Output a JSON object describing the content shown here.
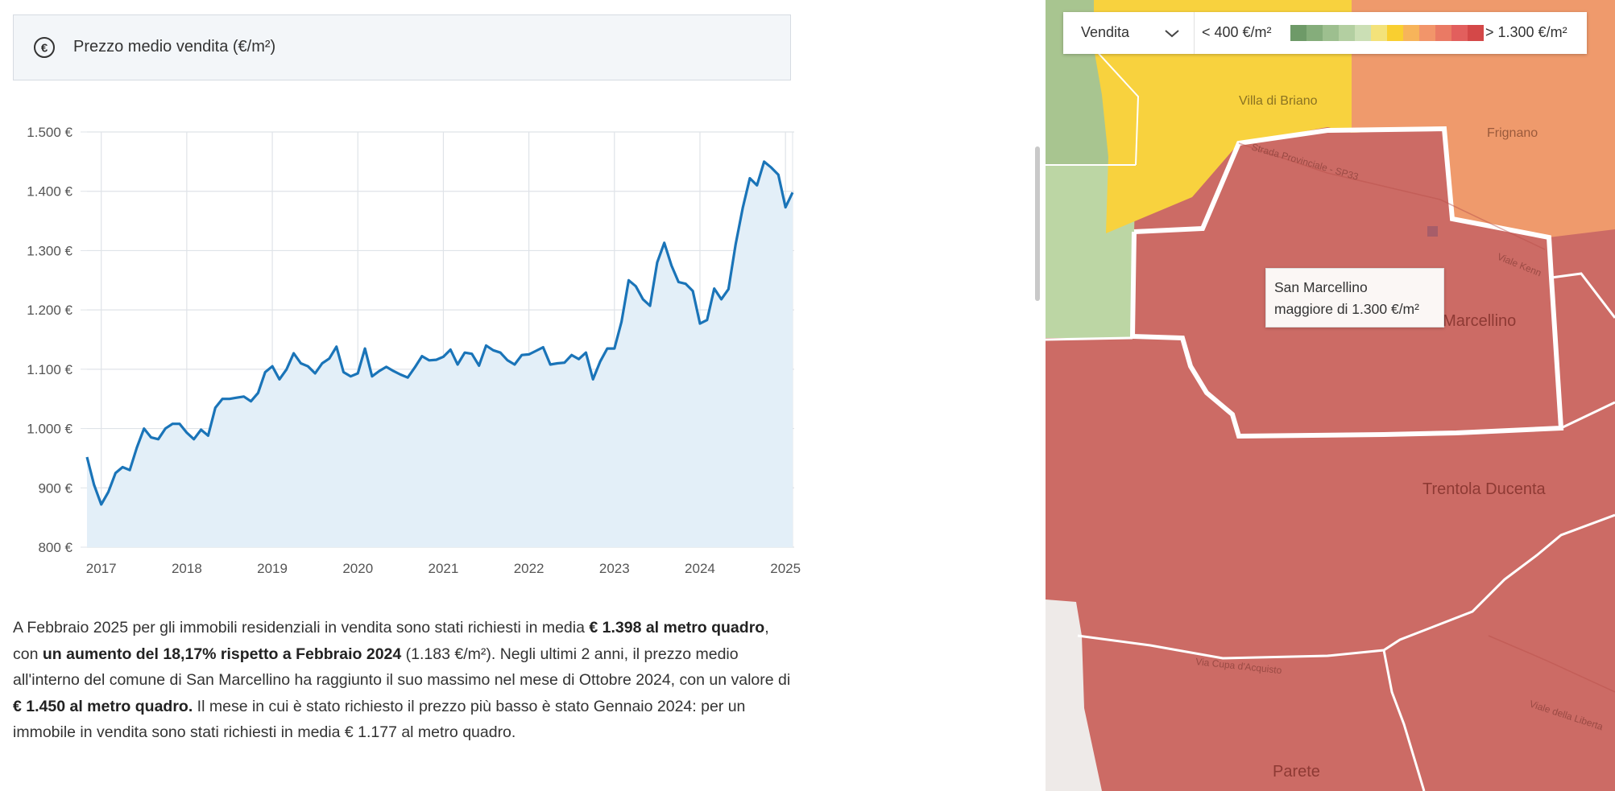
{
  "header": {
    "icon": "euro-circle-icon",
    "title": "Prezzo medio vendita (€/m²)"
  },
  "chart_data": {
    "type": "area",
    "title": "Prezzo medio vendita (€/m²)",
    "xlabel": "",
    "ylabel": "",
    "ylim": [
      800,
      1500
    ],
    "yticks": [
      "800 €",
      "900 €",
      "1.000 €",
      "1.100 €",
      "1.200 €",
      "1.300 €",
      "1.400 €",
      "1.500 €"
    ],
    "xticks": [
      "2017",
      "2018",
      "2019",
      "2020",
      "2021",
      "2022",
      "2023",
      "2024",
      "2025"
    ],
    "grid": true,
    "legend": "none",
    "colors": {
      "line": "#1a74b8",
      "fill": "#e3eff8",
      "grid": "#dfe3e8"
    },
    "x": [
      "2016-11",
      "2016-12",
      "2017-01",
      "2017-02",
      "2017-03",
      "2017-04",
      "2017-05",
      "2017-06",
      "2017-07",
      "2017-08",
      "2017-09",
      "2017-10",
      "2017-11",
      "2017-12",
      "2018-01",
      "2018-02",
      "2018-03",
      "2018-04",
      "2018-05",
      "2018-06",
      "2018-07",
      "2018-08",
      "2018-09",
      "2018-10",
      "2018-11",
      "2018-12",
      "2019-01",
      "2019-02",
      "2019-03",
      "2019-04",
      "2019-05",
      "2019-06",
      "2019-07",
      "2019-08",
      "2019-09",
      "2019-10",
      "2019-11",
      "2019-12",
      "2020-01",
      "2020-02",
      "2020-03",
      "2020-04",
      "2020-05",
      "2020-06",
      "2020-07",
      "2020-08",
      "2020-09",
      "2020-10",
      "2020-11",
      "2020-12",
      "2021-01",
      "2021-02",
      "2021-03",
      "2021-04",
      "2021-05",
      "2021-06",
      "2021-07",
      "2021-08",
      "2021-09",
      "2021-10",
      "2021-11",
      "2021-12",
      "2022-01",
      "2022-02",
      "2022-03",
      "2022-04",
      "2022-05",
      "2022-06",
      "2022-07",
      "2022-08",
      "2022-09",
      "2022-10",
      "2022-11",
      "2022-12",
      "2023-01",
      "2023-02",
      "2023-03",
      "2023-04",
      "2023-05",
      "2023-06",
      "2023-07",
      "2023-08",
      "2023-09",
      "2023-10",
      "2023-11",
      "2023-12",
      "2024-01",
      "2024-02",
      "2024-03",
      "2024-04",
      "2024-05",
      "2024-06",
      "2024-07",
      "2024-08",
      "2024-09",
      "2024-10",
      "2024-11",
      "2024-12",
      "2025-01",
      "2025-02"
    ],
    "series": [
      {
        "values": [
          952,
          905,
          872,
          893,
          925,
          935,
          930,
          968,
          1000,
          985,
          982,
          1000,
          1008,
          1008,
          993,
          982,
          998,
          988,
          1035,
          1050,
          1050,
          1052,
          1054,
          1046,
          1060,
          1095,
          1105,
          1083,
          1100,
          1127,
          1110,
          1105,
          1093,
          1110,
          1118,
          1138,
          1095,
          1088,
          1093,
          1135,
          1088,
          1097,
          1104,
          1097,
          1091,
          1086,
          1103,
          1122,
          1115,
          1116,
          1121,
          1133,
          1108,
          1128,
          1126,
          1106,
          1140,
          1132,
          1128,
          1115,
          1108,
          1124,
          1125,
          1131,
          1137,
          1108,
          1110,
          1111,
          1124,
          1117,
          1128,
          1083,
          1113,
          1135,
          1135,
          1180,
          1250,
          1240,
          1218,
          1207,
          1280,
          1313,
          1275,
          1247,
          1244,
          1232,
          1177,
          1183,
          1236,
          1218,
          1235,
          1310,
          1372,
          1422,
          1410,
          1450,
          1440,
          1428,
          1373,
          1398
        ]
      }
    ]
  },
  "summary": {
    "s1": "A Febbraio 2025 per gli immobili residenziali in vendita sono stati richiesti in media ",
    "b1": "€ 1.398 al metro quadro",
    "s2": ", con ",
    "b2": "un aumento del 18,17% rispetto a Febbraio 2024",
    "s3": " (1.183 €/m²). Negli ultimi 2 anni, il prezzo medio all'interno del comune di San Marcellino ha raggiunto il suo massimo nel mese di Ottobre 2024, con un valore di ",
    "b3": "€ 1.450 al metro quadro.",
    "s4": " Il mese in cui è stato richiesto il prezzo più basso è stato Gennaio 2024: per un immobile in vendita sono stati richiesti in media € 1.177 al metro quadro."
  },
  "map": {
    "select": {
      "value": "Vendita",
      "icon": "chevron-down-icon"
    },
    "legend": {
      "min_label": "< 400 €/m²",
      "max_label": "> 1.300 €/m²",
      "colors": [
        "#6e9a68",
        "#85ad7b",
        "#9dbf8f",
        "#b3cfa1",
        "#cbdfb5",
        "#f3e27a",
        "#f9cf30",
        "#f7b45a",
        "#f2956a",
        "#ea7a64",
        "#e25f5d",
        "#d44848"
      ]
    },
    "tooltip": {
      "name": "San Marcellino",
      "value": "maggiore di 1.300 €/m²"
    },
    "labels": {
      "villa": "Villa di Briano",
      "frignano": "Frignano",
      "sanmarcellino": "San Marcellino",
      "trentola": "Trentola Ducenta",
      "parete": "Parete",
      "road1": "Strada Provinciale - SP33",
      "road2": "Viale Kenn",
      "road3": "Via Cupa d'Acquisto",
      "road4": "Viale della Liberta"
    },
    "colors": {
      "red": "#cc6b65",
      "yellow": "#f8d23e",
      "orange": "#ef9a6c",
      "green": "#a8c590",
      "lightgreen": "#bcd6a4",
      "gray": "#eeeae8"
    }
  }
}
